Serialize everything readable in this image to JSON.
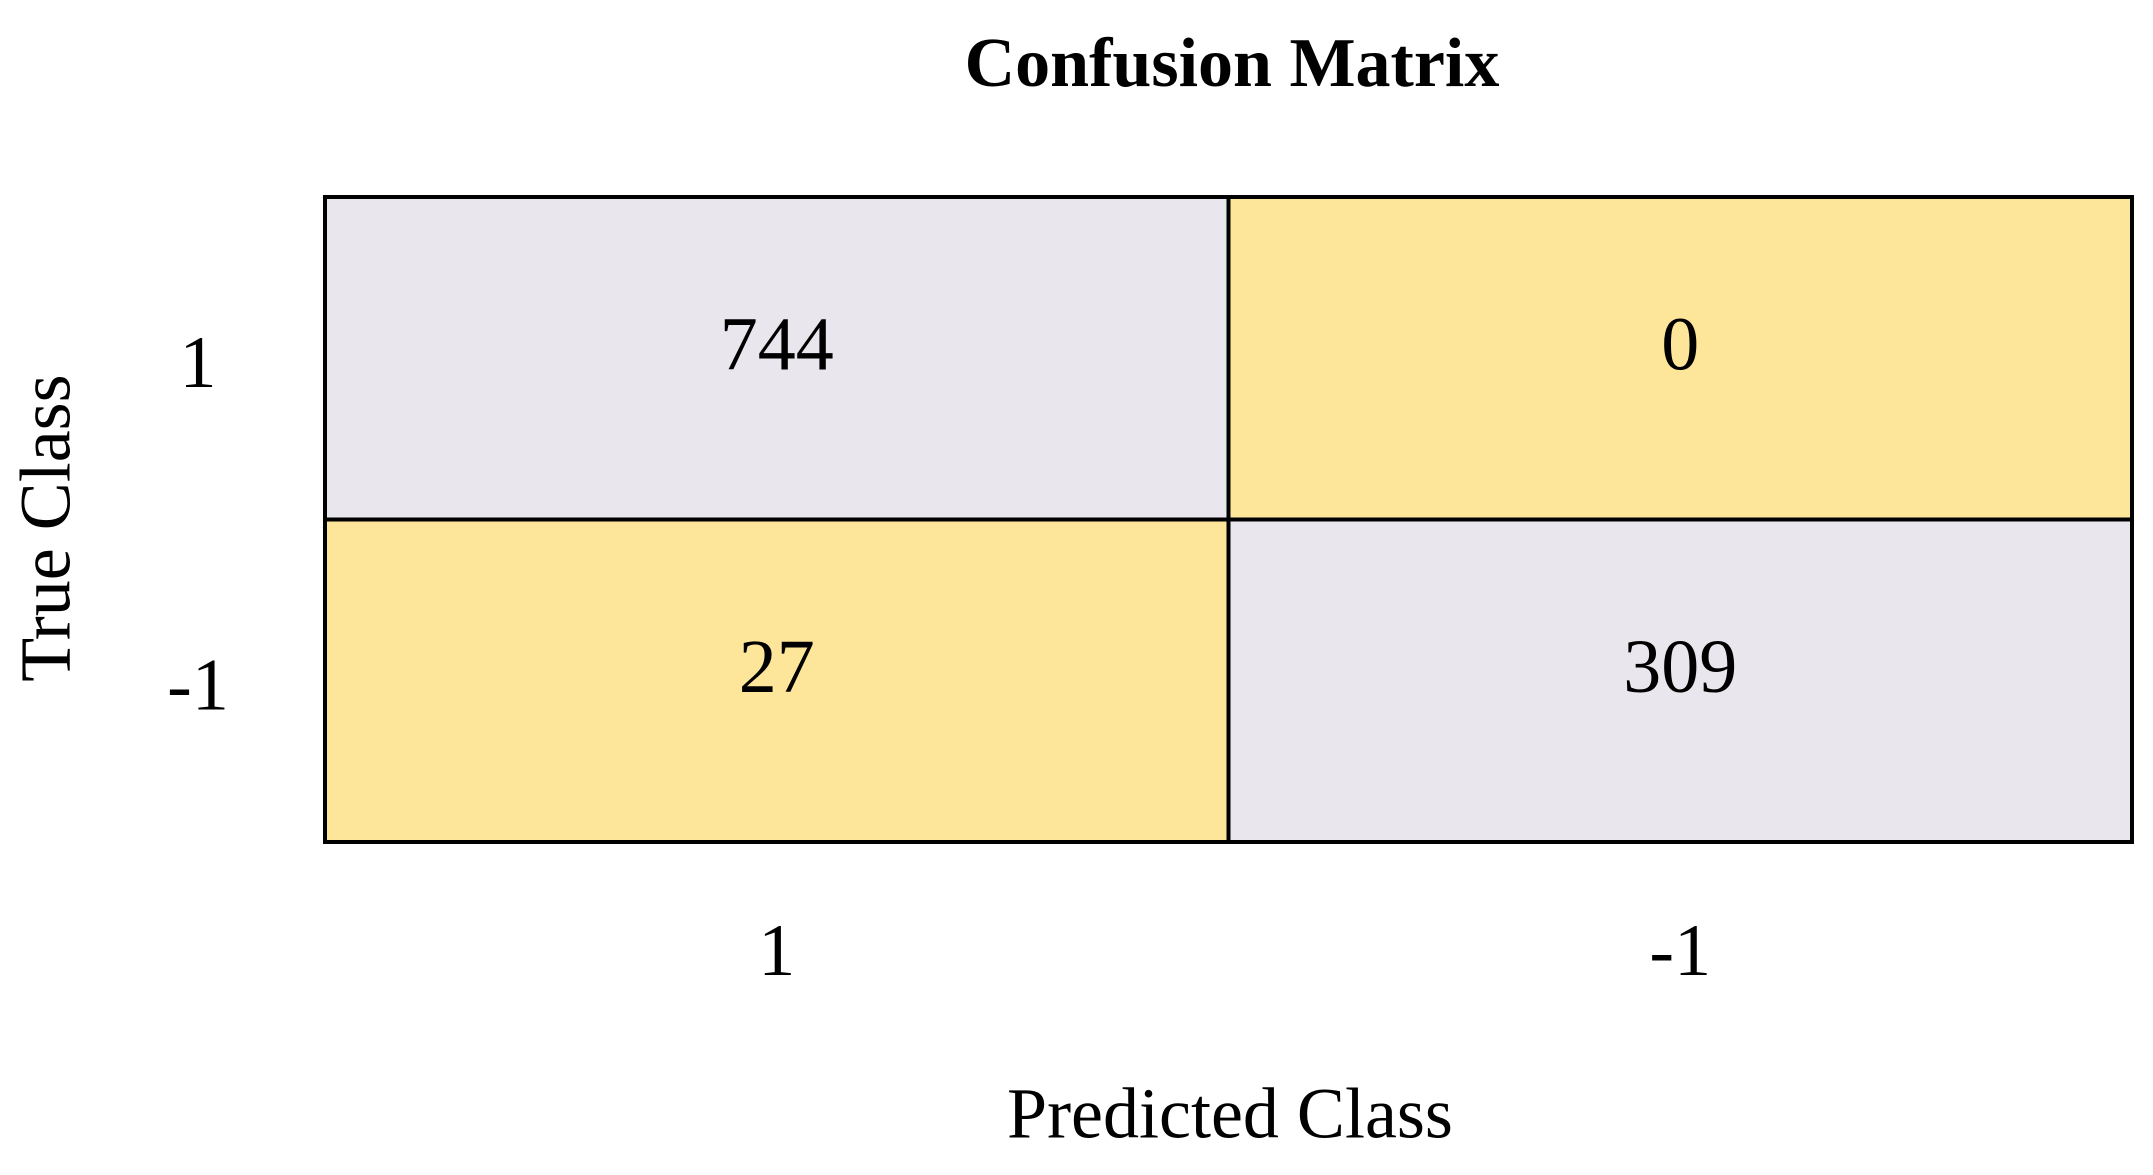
{
  "chart_data": {
    "type": "heatmap",
    "title": "Confusion Matrix",
    "x_label": "Predicted Class",
    "y_label": "True Class",
    "x_categories": [
      "1",
      "-1"
    ],
    "y_categories": [
      "1",
      "-1"
    ],
    "values": [
      [
        744,
        0
      ],
      [
        27,
        309
      ]
    ],
    "diagonal_color": "#e9e6ee",
    "off_diagonal_color": "#fde59a"
  }
}
